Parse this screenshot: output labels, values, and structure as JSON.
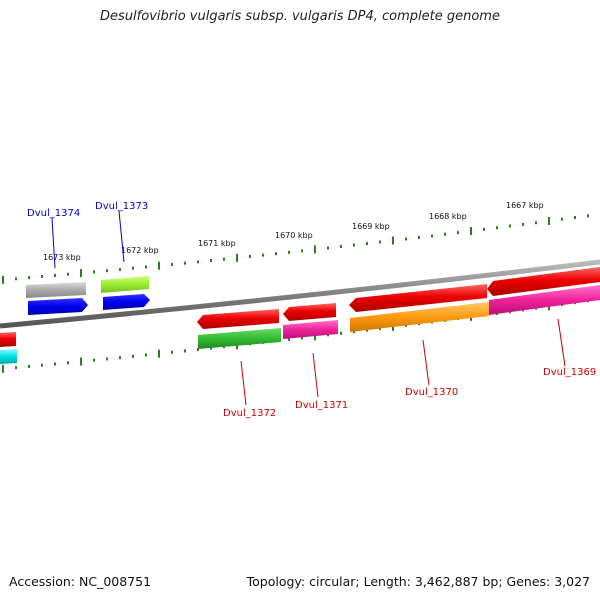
{
  "title": "Desulfovibrio vulgaris subsp. vulgaris DP4, complete genome",
  "footer": {
    "accession": "Accession: NC_008751",
    "stats": "Topology: circular; Length: 3,462,887 bp; Genes: 3,027"
  },
  "ticks": [
    "1673 kbp",
    "1672 kbp",
    "1671 kbp",
    "1670 kbp",
    "1669 kbp",
    "1668 kbp",
    "1667 kbp"
  ],
  "genes": {
    "dvul_1374": {
      "label": "Dvul_1374",
      "color": "#0000cc"
    },
    "dvul_1373": {
      "label": "Dvul_1373",
      "color": "#0000cc"
    },
    "dvul_1372": {
      "label": "Dvul_1372",
      "color": "#cc0000"
    },
    "dvul_1371": {
      "label": "Dvul_1371",
      "color": "#cc0000"
    },
    "dvul_1370": {
      "label": "Dvul_1370",
      "color": "#cc0000"
    },
    "dvul_1369": {
      "label": "Dvul_1369",
      "color": "#cc0000"
    }
  },
  "colors": {
    "backbone": "#808080",
    "tick": "#2e7d1e",
    "red": "#ee0000",
    "blue": "#0000ee",
    "grey": "#aaaaaa",
    "lime": "#99ee33",
    "green": "#33bb33",
    "magenta": "#ee2299",
    "orange": "#ff9911",
    "cyan": "#00e0e0"
  }
}
